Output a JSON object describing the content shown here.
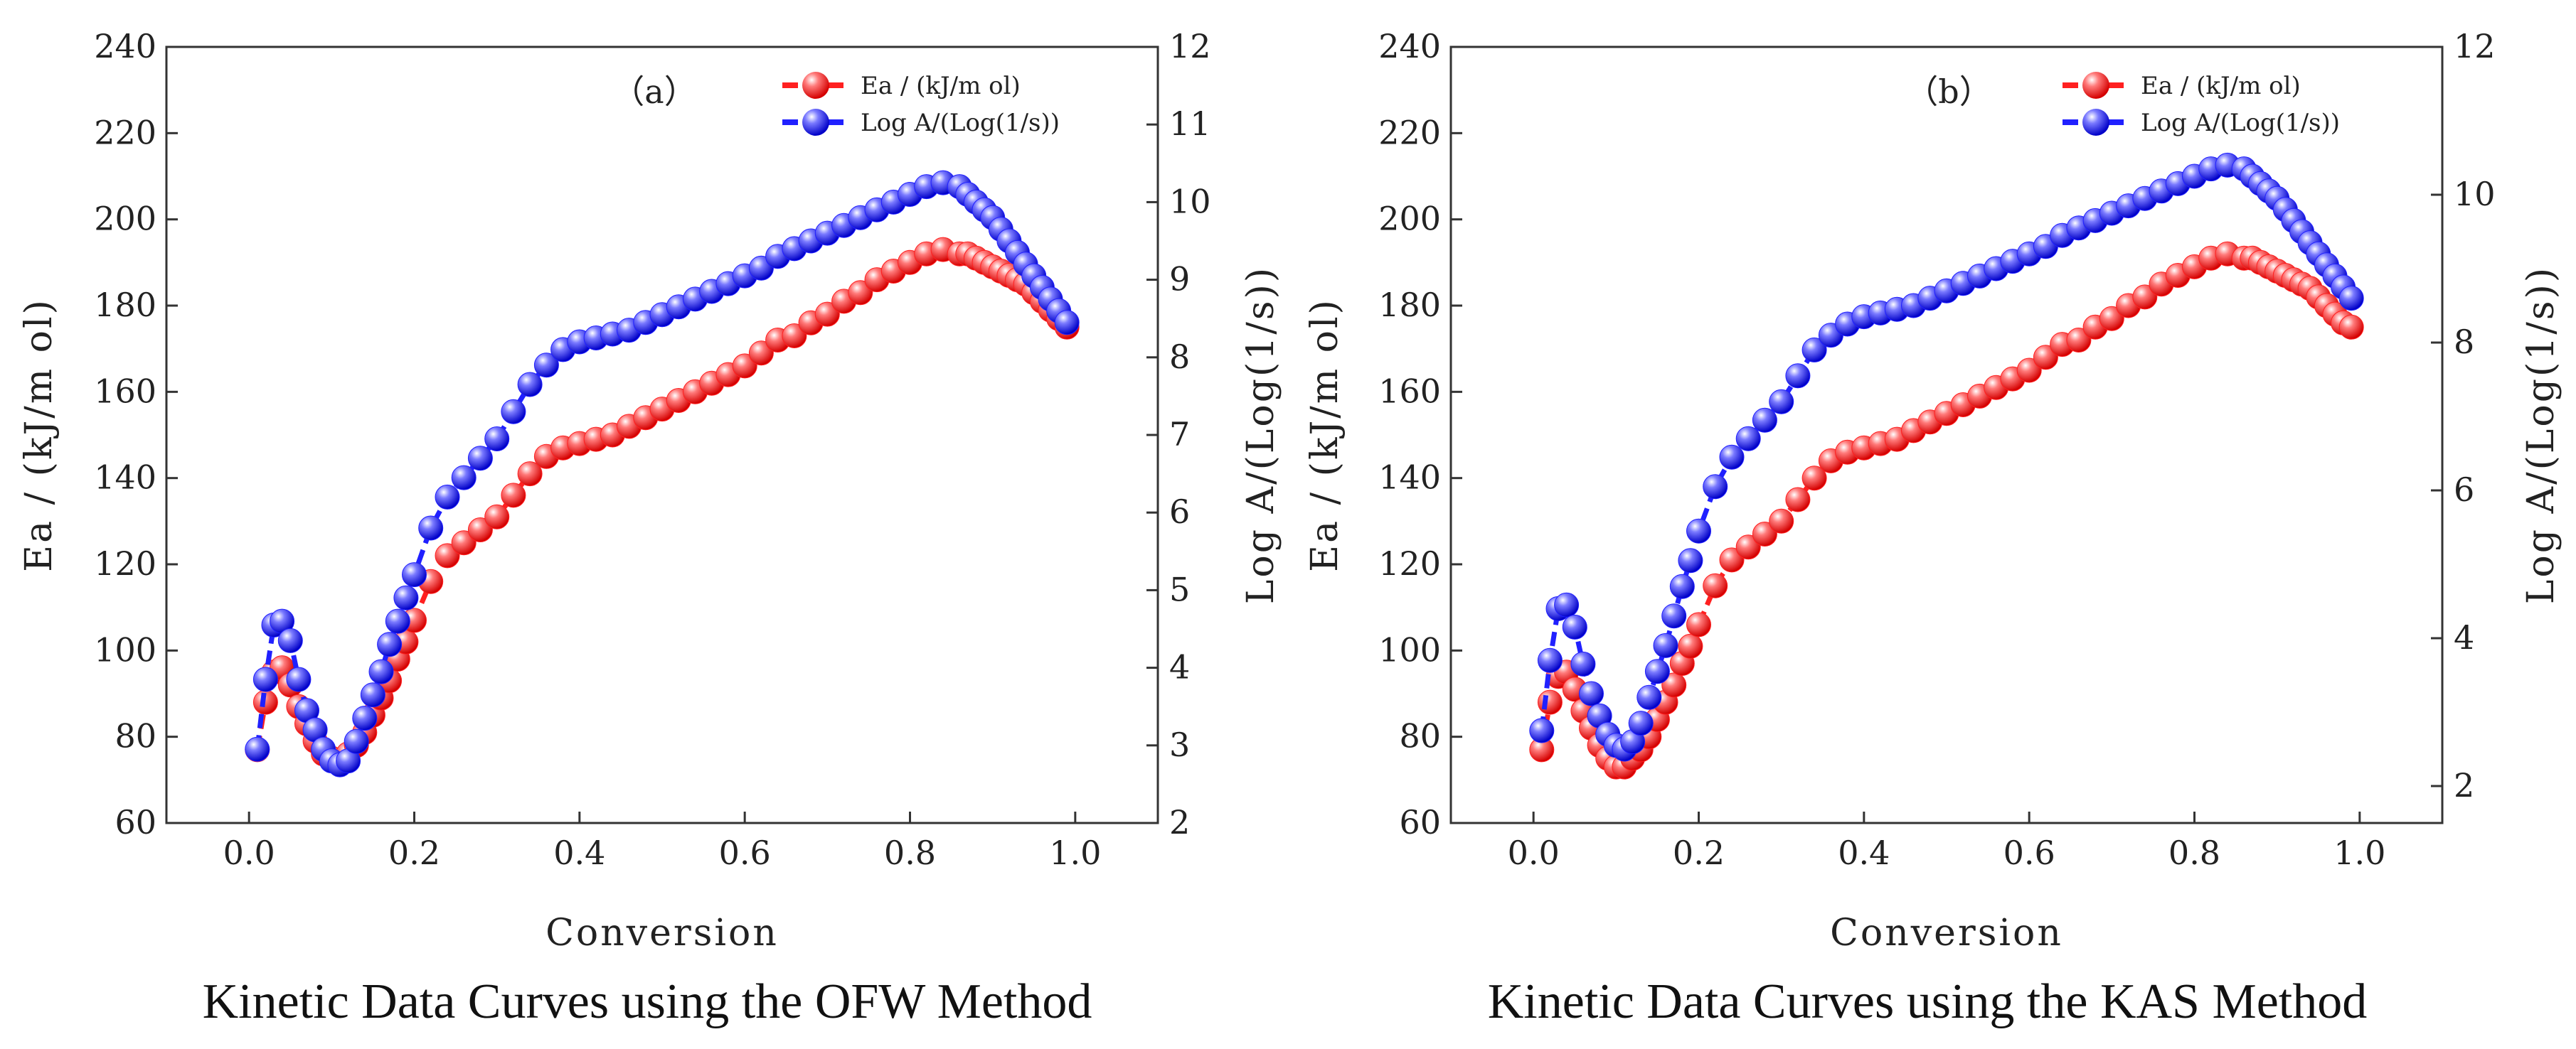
{
  "chart_data": [
    {
      "type": "scatter",
      "panel_label": "（a）",
      "caption": "Kinetic Data Curves using the OFW Method",
      "xlabel": "Conversion",
      "ylabel_left": "Ea / (kJ/m ol)",
      "ylabel_right": "Log A/(Log(1/s))",
      "xlim": [
        -0.1,
        1.1
      ],
      "ylim_left": [
        60,
        240
      ],
      "ylim_right": [
        2,
        12
      ],
      "xticks": [
        "0.0",
        "0.2",
        "0.4",
        "0.6",
        "0.8",
        "1.0"
      ],
      "yticks_left": [
        "60",
        "80",
        "100",
        "120",
        "140",
        "160",
        "180",
        "200",
        "220",
        "240"
      ],
      "yticks_right": [
        "2",
        "3",
        "4",
        "5",
        "6",
        "7",
        "8",
        "9",
        "10",
        "11",
        "12"
      ],
      "legend": {
        "position": "top-right",
        "entries": [
          "Ea / (kJ/m ol)",
          "Log A/(Log(1/s))"
        ]
      },
      "colors": {
        "ea": "#ff2020",
        "loga": "#2020ff"
      },
      "series": [
        {
          "name": "Ea / (kJ/m ol)",
          "axis": "left",
          "color": "#ff2020",
          "x": [
            0.01,
            0.02,
            0.03,
            0.04,
            0.05,
            0.06,
            0.07,
            0.08,
            0.09,
            0.1,
            0.11,
            0.12,
            0.13,
            0.14,
            0.15,
            0.16,
            0.17,
            0.18,
            0.19,
            0.2,
            0.22,
            0.24,
            0.26,
            0.28,
            0.3,
            0.32,
            0.34,
            0.36,
            0.38,
            0.4,
            0.42,
            0.44,
            0.46,
            0.48,
            0.5,
            0.52,
            0.54,
            0.56,
            0.58,
            0.6,
            0.62,
            0.64,
            0.66,
            0.68,
            0.7,
            0.72,
            0.74,
            0.76,
            0.78,
            0.8,
            0.82,
            0.84,
            0.86,
            0.87,
            0.88,
            0.89,
            0.9,
            0.91,
            0.92,
            0.93,
            0.94,
            0.95,
            0.96,
            0.97,
            0.98,
            0.99
          ],
          "y": [
            77,
            88,
            95,
            96,
            92,
            87,
            83,
            79,
            76,
            75,
            74,
            76,
            78,
            81,
            85,
            89,
            93,
            98,
            102,
            107,
            116,
            122,
            125,
            128,
            131,
            136,
            141,
            145,
            147,
            148,
            149,
            150,
            152,
            154,
            156,
            158,
            160,
            162,
            164,
            166,
            169,
            172,
            173,
            176,
            178,
            181,
            183,
            186,
            188,
            190,
            192,
            193,
            192,
            192,
            191,
            190,
            189,
            188,
            187,
            186,
            185,
            183,
            181,
            179,
            177,
            175
          ]
        },
        {
          "name": "Log A/(Log(1/s))",
          "axis": "right",
          "color": "#2020ff",
          "x": [
            0.01,
            0.02,
            0.03,
            0.04,
            0.05,
            0.06,
            0.07,
            0.08,
            0.09,
            0.1,
            0.11,
            0.12,
            0.13,
            0.14,
            0.15,
            0.16,
            0.17,
            0.18,
            0.19,
            0.2,
            0.22,
            0.24,
            0.26,
            0.28,
            0.3,
            0.32,
            0.34,
            0.36,
            0.38,
            0.4,
            0.42,
            0.44,
            0.46,
            0.48,
            0.5,
            0.52,
            0.54,
            0.56,
            0.58,
            0.6,
            0.62,
            0.64,
            0.66,
            0.68,
            0.7,
            0.72,
            0.74,
            0.76,
            0.78,
            0.8,
            0.82,
            0.84,
            0.86,
            0.87,
            0.88,
            0.89,
            0.9,
            0.91,
            0.92,
            0.93,
            0.94,
            0.95,
            0.96,
            0.97,
            0.98,
            0.99
          ],
          "y": [
            2.95,
            3.85,
            4.55,
            4.6,
            4.35,
            3.85,
            3.45,
            3.2,
            2.95,
            2.8,
            2.75,
            2.8,
            3.05,
            3.35,
            3.65,
            3.95,
            4.3,
            4.6,
            4.9,
            5.2,
            5.8,
            6.2,
            6.45,
            6.7,
            6.95,
            7.3,
            7.65,
            7.9,
            8.1,
            8.2,
            8.25,
            8.3,
            8.35,
            8.45,
            8.55,
            8.65,
            8.75,
            8.85,
            8.95,
            9.05,
            9.15,
            9.3,
            9.4,
            9.5,
            9.6,
            9.7,
            9.8,
            9.9,
            10.0,
            10.1,
            10.2,
            10.25,
            10.2,
            10.1,
            10.0,
            9.9,
            9.8,
            9.65,
            9.5,
            9.35,
            9.2,
            9.05,
            8.9,
            8.75,
            8.6,
            8.45
          ]
        }
      ]
    },
    {
      "type": "scatter",
      "panel_label": "（b）",
      "caption": "Kinetic Data Curves using the KAS Method",
      "xlabel": "Conversion",
      "ylabel_left": "Ea / (kJ/m ol)",
      "ylabel_right": "Log A/(Log(1/s))",
      "xlim": [
        -0.1,
        1.1
      ],
      "ylim_left": [
        60,
        240
      ],
      "ylim_right": [
        1.5,
        12
      ],
      "xticks": [
        "0.0",
        "0.2",
        "0.4",
        "0.6",
        "0.8",
        "1.0"
      ],
      "yticks_left": [
        "60",
        "80",
        "100",
        "120",
        "140",
        "160",
        "180",
        "200",
        "220",
        "240"
      ],
      "yticks_right": [
        "2",
        "4",
        "6",
        "8",
        "10",
        "12"
      ],
      "legend": {
        "position": "top-right",
        "entries": [
          "Ea / (kJ/m ol)",
          "Log A/(Log(1/s))"
        ]
      },
      "colors": {
        "ea": "#ff2020",
        "loga": "#2020ff"
      },
      "series": [
        {
          "name": "Ea / (kJ/m ol)",
          "axis": "left",
          "color": "#ff2020",
          "x": [
            0.01,
            0.02,
            0.03,
            0.04,
            0.05,
            0.06,
            0.07,
            0.08,
            0.09,
            0.1,
            0.11,
            0.12,
            0.13,
            0.14,
            0.15,
            0.16,
            0.17,
            0.18,
            0.19,
            0.2,
            0.22,
            0.24,
            0.26,
            0.28,
            0.3,
            0.32,
            0.34,
            0.36,
            0.38,
            0.4,
            0.42,
            0.44,
            0.46,
            0.48,
            0.5,
            0.52,
            0.54,
            0.56,
            0.58,
            0.6,
            0.62,
            0.64,
            0.66,
            0.68,
            0.7,
            0.72,
            0.74,
            0.76,
            0.78,
            0.8,
            0.82,
            0.84,
            0.86,
            0.87,
            0.88,
            0.89,
            0.9,
            0.91,
            0.92,
            0.93,
            0.94,
            0.95,
            0.96,
            0.97,
            0.98,
            0.99
          ],
          "y": [
            77,
            88,
            94,
            95,
            91,
            86,
            82,
            78,
            75,
            73,
            73,
            75,
            77,
            80,
            84,
            88,
            92,
            97,
            101,
            106,
            115,
            121,
            124,
            127,
            130,
            135,
            140,
            144,
            146,
            147,
            148,
            149,
            151,
            153,
            155,
            157,
            159,
            161,
            163,
            165,
            168,
            171,
            172,
            175,
            177,
            180,
            182,
            185,
            187,
            189,
            191,
            192,
            191,
            191,
            190,
            189,
            188,
            187,
            186,
            185,
            184,
            182,
            180,
            178,
            176,
            175
          ]
        },
        {
          "name": "Log A/(Log(1/s))",
          "axis": "right",
          "color": "#2020ff",
          "x": [
            0.01,
            0.02,
            0.03,
            0.04,
            0.05,
            0.06,
            0.07,
            0.08,
            0.09,
            0.1,
            0.11,
            0.12,
            0.13,
            0.14,
            0.15,
            0.16,
            0.17,
            0.18,
            0.19,
            0.2,
            0.22,
            0.24,
            0.26,
            0.28,
            0.3,
            0.32,
            0.34,
            0.36,
            0.38,
            0.4,
            0.42,
            0.44,
            0.46,
            0.48,
            0.5,
            0.52,
            0.54,
            0.56,
            0.58,
            0.6,
            0.62,
            0.64,
            0.66,
            0.68,
            0.7,
            0.72,
            0.74,
            0.76,
            0.78,
            0.8,
            0.82,
            0.84,
            0.86,
            0.87,
            0.88,
            0.89,
            0.9,
            0.91,
            0.92,
            0.93,
            0.94,
            0.95,
            0.96,
            0.97,
            0.98,
            0.99
          ],
          "y": [
            2.75,
            3.7,
            4.4,
            4.45,
            4.15,
            3.65,
            3.25,
            2.95,
            2.7,
            2.55,
            2.5,
            2.6,
            2.85,
            3.2,
            3.55,
            3.9,
            4.3,
            4.7,
            5.05,
            5.45,
            6.05,
            6.45,
            6.7,
            6.95,
            7.2,
            7.55,
            7.9,
            8.1,
            8.25,
            8.35,
            8.4,
            8.45,
            8.5,
            8.6,
            8.7,
            8.8,
            8.9,
            9.0,
            9.1,
            9.2,
            9.3,
            9.45,
            9.55,
            9.65,
            9.75,
            9.85,
            9.95,
            10.05,
            10.15,
            10.25,
            10.35,
            10.4,
            10.35,
            10.25,
            10.15,
            10.05,
            9.95,
            9.8,
            9.65,
            9.5,
            9.35,
            9.2,
            9.05,
            8.9,
            8.75,
            8.6
          ]
        }
      ]
    }
  ]
}
